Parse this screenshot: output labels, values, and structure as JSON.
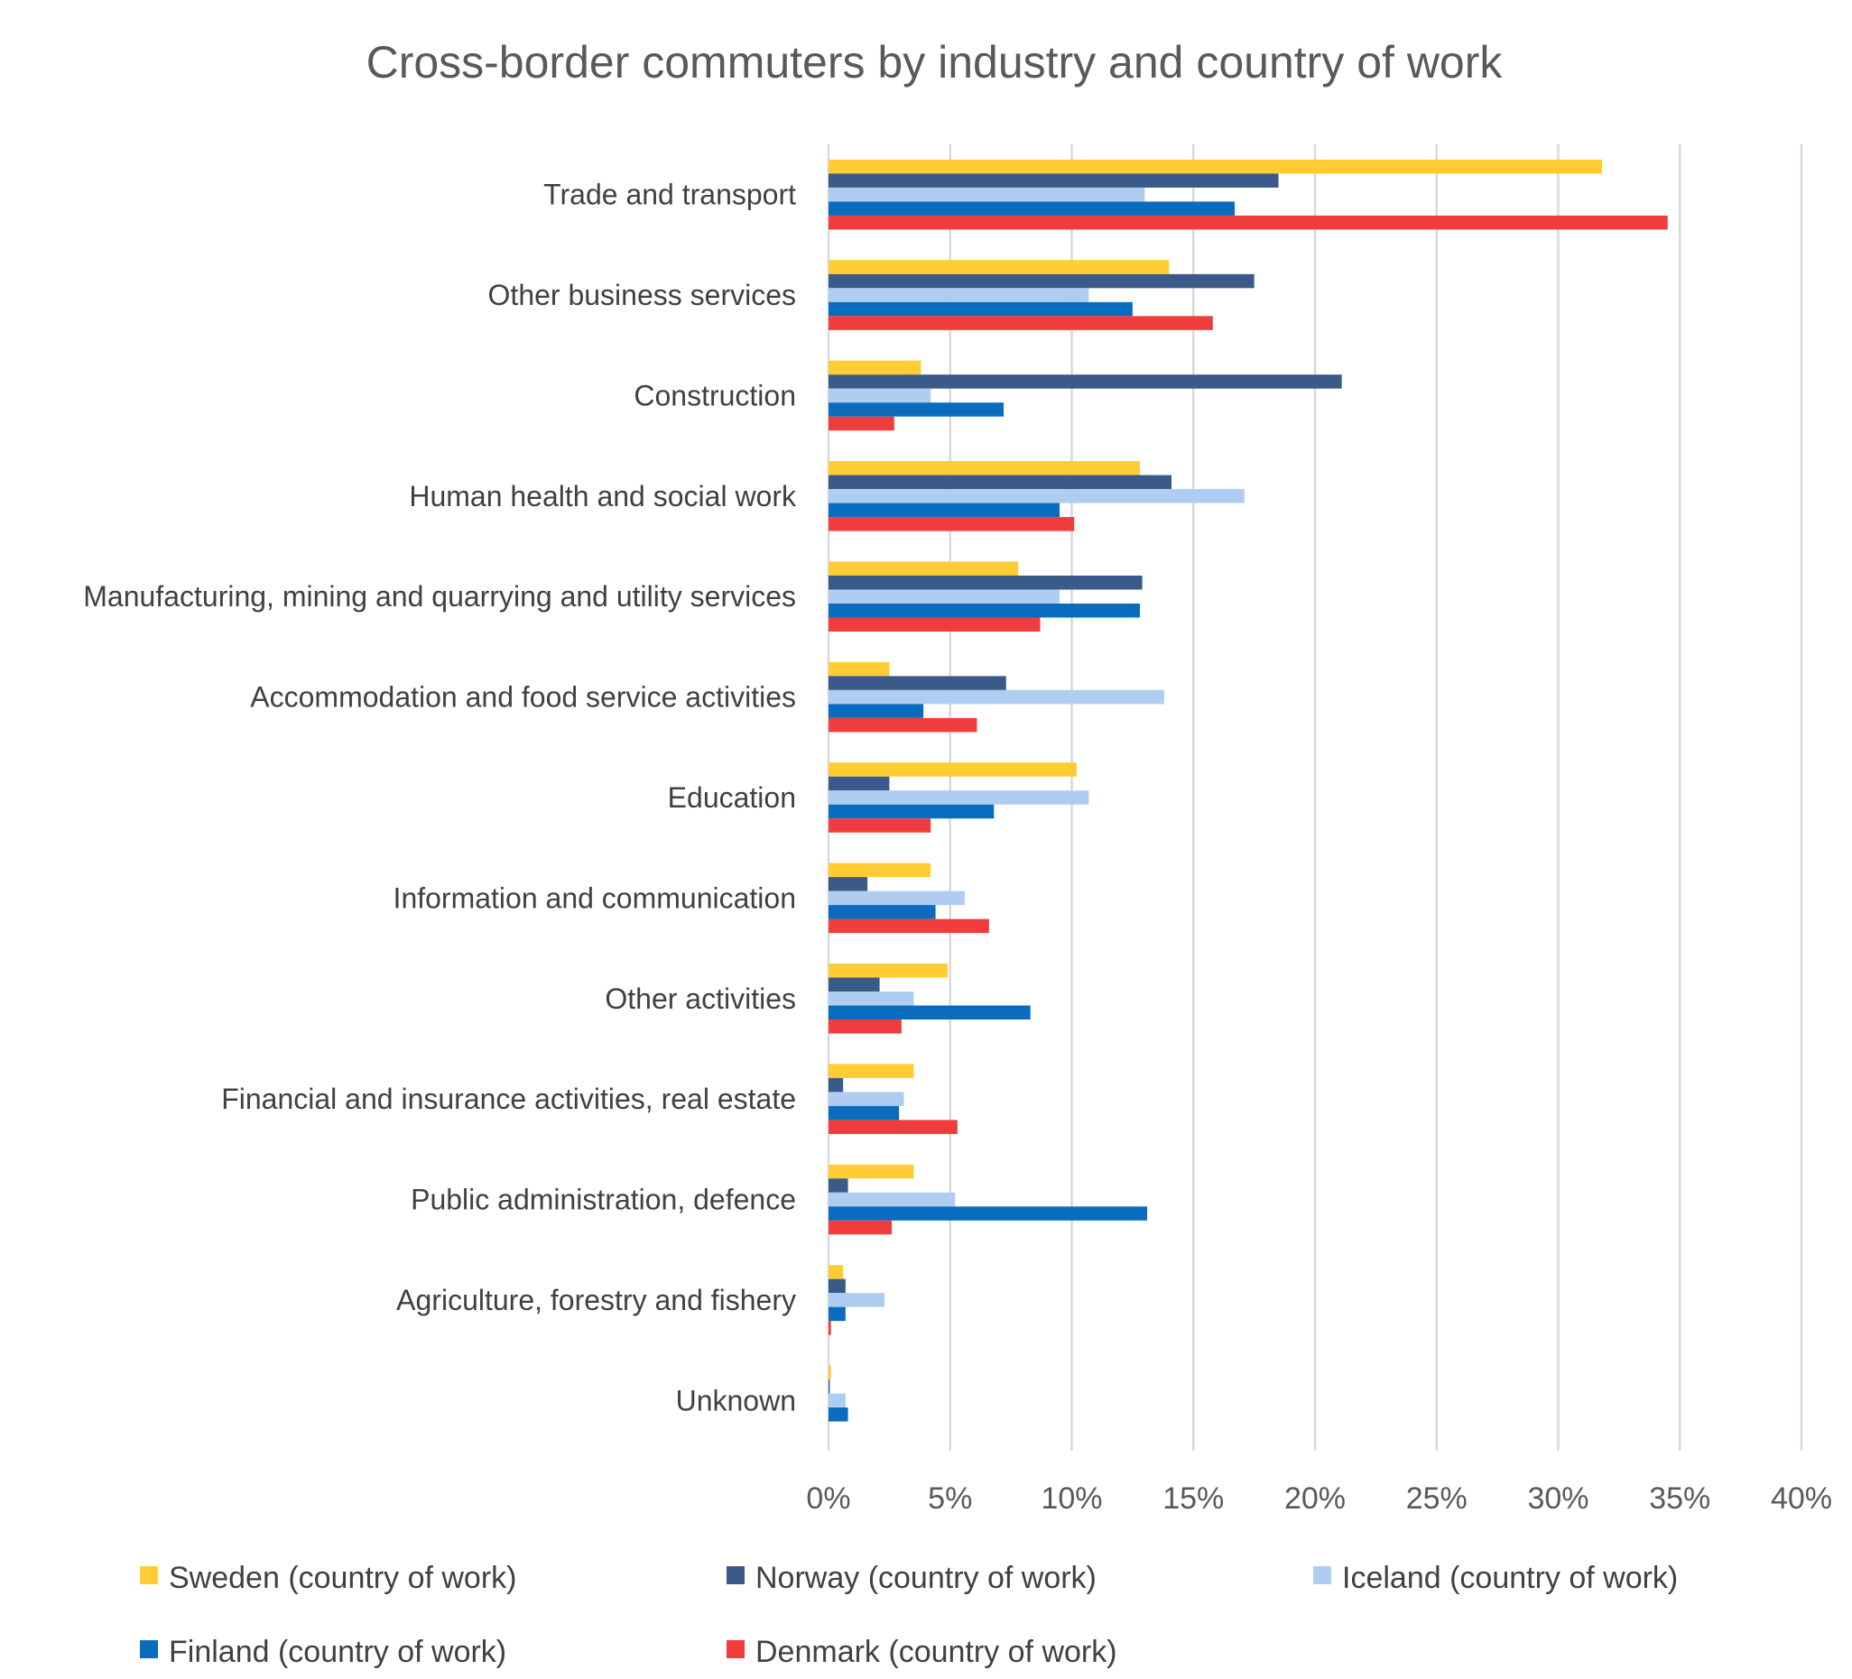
{
  "chart_data": {
    "type": "bar",
    "orientation": "horizontal",
    "title": "Cross-border commuters by industry and country of work",
    "xlabel": "",
    "ylabel": "",
    "xlim": [
      0,
      40
    ],
    "grid": true,
    "legend_position": "bottom",
    "x_ticks": [
      "0%",
      "5%",
      "10%",
      "15%",
      "20%",
      "25%",
      "30%",
      "35%",
      "40%"
    ],
    "x_tick_values": [
      0,
      5,
      10,
      15,
      20,
      25,
      30,
      35,
      40
    ],
    "categories": [
      "Trade and transport",
      "Other business services",
      "Construction",
      "Human health and social work",
      "Manufacturing, mining and quarrying and utility services",
      "Accommodation and food service activities",
      "Education",
      "Information and communication",
      "Other activities",
      "Financial and insurance activities, real estate",
      "Public administration, defence",
      "Agriculture, forestry and fishery",
      "Unknown"
    ],
    "series": [
      {
        "name": "Sweden (country of work)",
        "color": "#FFCC33",
        "values": [
          31.8,
          14.0,
          3.8,
          12.8,
          7.8,
          2.5,
          10.2,
          4.2,
          4.9,
          3.5,
          3.5,
          0.6,
          0.1
        ]
      },
      {
        "name": "Norway (country of work)",
        "color": "#3A5A8A",
        "values": [
          18.5,
          17.5,
          21.1,
          14.1,
          12.9,
          7.3,
          2.5,
          1.6,
          2.1,
          0.6,
          0.8,
          0.7,
          0.05
        ]
      },
      {
        "name": "Iceland (country of work)",
        "color": "#AECDF0",
        "values": [
          13.0,
          10.7,
          4.2,
          17.1,
          9.5,
          13.8,
          10.7,
          5.6,
          3.5,
          3.1,
          5.2,
          2.3,
          0.7
        ]
      },
      {
        "name": "Finland (country of work)",
        "color": "#0A6CBF",
        "values": [
          16.7,
          12.5,
          7.2,
          9.5,
          12.8,
          3.9,
          6.8,
          4.4,
          8.3,
          2.9,
          13.1,
          0.7,
          0.8
        ]
      },
      {
        "name": "Denmark (country of work)",
        "color": "#F03C3C",
        "values": [
          34.5,
          15.8,
          2.7,
          10.1,
          8.7,
          6.1,
          4.2,
          6.6,
          3.0,
          5.3,
          2.6,
          0.1,
          0
        ]
      }
    ]
  }
}
